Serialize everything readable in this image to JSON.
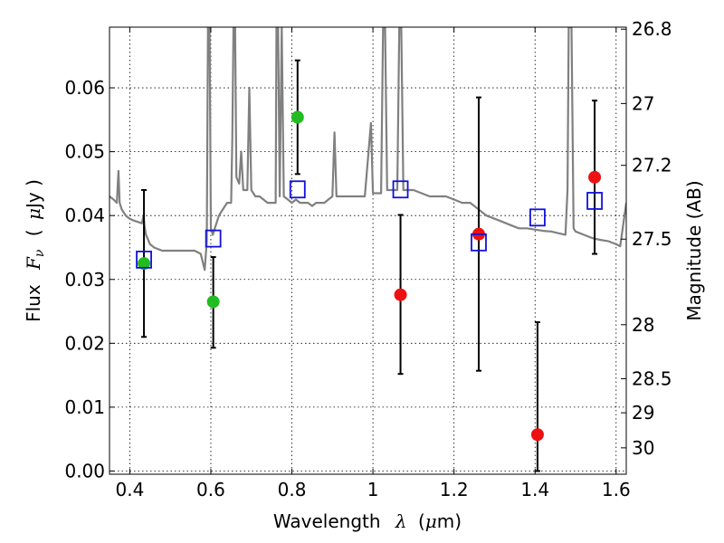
{
  "chart_data": {
    "type": "scatter",
    "title": "",
    "x_range": [
      0.35,
      1.625
    ],
    "y_range": [
      -0.0005,
      0.0695
    ],
    "grid": true,
    "x_axis": {
      "label_prefix": "Wavelength",
      "label_symbol": "λ",
      "label_open": "(",
      "label_unit_symbol": "μ",
      "label_unit_text": "m)",
      "ticks": [
        {
          "value": 0.4,
          "label": "0.4"
        },
        {
          "value": 0.6,
          "label": "0.6"
        },
        {
          "value": 0.8,
          "label": "0.8"
        },
        {
          "value": 1.0,
          "label": "1"
        },
        {
          "value": 1.2,
          "label": "1.2"
        },
        {
          "value": 1.4,
          "label": "1.4"
        },
        {
          "value": 1.6,
          "label": "1.6"
        }
      ]
    },
    "y_axis": {
      "label_prefix": "Flux",
      "label_symbol": "F",
      "label_subscript": "ν",
      "label_open": "(",
      "label_unit_symbol": "μ",
      "label_unit_text": "Jy )",
      "ticks": [
        {
          "value": 0.0,
          "label": "0.00"
        },
        {
          "value": 0.01,
          "label": "0.01"
        },
        {
          "value": 0.02,
          "label": "0.02"
        },
        {
          "value": 0.03,
          "label": "0.03"
        },
        {
          "value": 0.04,
          "label": "0.04"
        },
        {
          "value": 0.05,
          "label": "0.05"
        },
        {
          "value": 0.06,
          "label": "0.06"
        }
      ]
    },
    "right_axis": {
      "label": "Magnitude (AB)",
      "ticks": [
        {
          "value": 26.8,
          "label": "26.8"
        },
        {
          "value": 27.0,
          "label": "27"
        },
        {
          "value": 27.2,
          "label": "27.2"
        },
        {
          "value": 27.5,
          "label": "27.5"
        },
        {
          "value": 28.0,
          "label": "28"
        },
        {
          "value": 28.5,
          "label": "28.5"
        },
        {
          "value": 29.0,
          "label": "29"
        },
        {
          "value": 30.0,
          "label": "30"
        }
      ]
    },
    "series": [
      {
        "marker": "circle",
        "color": "#22bb22",
        "points": [
          {
            "x": 0.435,
            "y": 0.0325,
            "yerr_low": 0.021,
            "yerr_high": 0.044
          },
          {
            "x": 0.606,
            "y": 0.0265,
            "yerr_low": 0.0193,
            "yerr_high": 0.0335
          },
          {
            "x": 0.814,
            "y": 0.0554,
            "yerr_low": 0.0465,
            "yerr_high": 0.0643
          }
        ]
      },
      {
        "marker": "circle",
        "color": "#ee1111",
        "points": [
          {
            "x": 1.068,
            "y": 0.0276,
            "yerr_low": 0.0152,
            "yerr_high": 0.0401
          },
          {
            "x": 1.261,
            "y": 0.0371,
            "yerr_low": 0.0157,
            "yerr_high": 0.0585
          },
          {
            "x": 1.406,
            "y": 0.0057,
            "yerr_low": 0.0,
            "yerr_high": 0.0233
          },
          {
            "x": 1.547,
            "y": 0.046,
            "yerr_low": 0.034,
            "yerr_high": 0.058
          }
        ]
      },
      {
        "marker": "square",
        "color": "#1111dd",
        "points": [
          {
            "x": 0.435,
            "y": 0.0331
          },
          {
            "x": 0.606,
            "y": 0.0364
          },
          {
            "x": 0.814,
            "y": 0.0441
          },
          {
            "x": 1.068,
            "y": 0.0441
          },
          {
            "x": 1.261,
            "y": 0.0358
          },
          {
            "x": 1.406,
            "y": 0.0397
          },
          {
            "x": 1.547,
            "y": 0.0423
          }
        ]
      }
    ],
    "model_spectrum": {
      "color": "#808080",
      "points": [
        [
          0.35,
          0.043
        ],
        [
          0.36,
          0.0425
        ],
        [
          0.368,
          0.042
        ],
        [
          0.372,
          0.047
        ],
        [
          0.375,
          0.042
        ],
        [
          0.38,
          0.041
        ],
        [
          0.39,
          0.04
        ],
        [
          0.4,
          0.0395
        ],
        [
          0.41,
          0.0392
        ],
        [
          0.42,
          0.039
        ],
        [
          0.43,
          0.0388
        ],
        [
          0.434,
          0.04
        ],
        [
          0.436,
          0.0385
        ],
        [
          0.44,
          0.037
        ],
        [
          0.45,
          0.0355
        ],
        [
          0.46,
          0.035
        ],
        [
          0.48,
          0.0345
        ],
        [
          0.5,
          0.0345
        ],
        [
          0.52,
          0.0345
        ],
        [
          0.54,
          0.0345
        ],
        [
          0.56,
          0.0345
        ],
        [
          0.575,
          0.034
        ],
        [
          0.585,
          0.0315
        ],
        [
          0.59,
          0.036
        ],
        [
          0.593,
          0.0695
        ],
        [
          0.597,
          0.0695
        ],
        [
          0.6,
          0.038
        ],
        [
          0.605,
          0.037
        ],
        [
          0.61,
          0.038
        ],
        [
          0.62,
          0.04
        ],
        [
          0.63,
          0.041
        ],
        [
          0.64,
          0.042
        ],
        [
          0.65,
          0.042
        ],
        [
          0.653,
          0.052
        ],
        [
          0.656,
          0.0695
        ],
        [
          0.66,
          0.0695
        ],
        [
          0.663,
          0.046
        ],
        [
          0.67,
          0.045
        ],
        [
          0.675,
          0.05
        ],
        [
          0.68,
          0.044
        ],
        [
          0.69,
          0.044
        ],
        [
          0.695,
          0.06
        ],
        [
          0.7,
          0.044
        ],
        [
          0.71,
          0.043
        ],
        [
          0.72,
          0.043
        ],
        [
          0.73,
          0.0425
        ],
        [
          0.74,
          0.042
        ],
        [
          0.75,
          0.042
        ],
        [
          0.76,
          0.042
        ],
        [
          0.762,
          0.0695
        ],
        [
          0.766,
          0.0695
        ],
        [
          0.77,
          0.043
        ],
        [
          0.775,
          0.0695
        ],
        [
          0.78,
          0.043
        ],
        [
          0.79,
          0.0425
        ],
        [
          0.8,
          0.042
        ],
        [
          0.81,
          0.0425
        ],
        [
          0.82,
          0.042
        ],
        [
          0.83,
          0.042
        ],
        [
          0.84,
          0.042
        ],
        [
          0.85,
          0.0415
        ],
        [
          0.86,
          0.042
        ],
        [
          0.87,
          0.042
        ],
        [
          0.88,
          0.042
        ],
        [
          0.89,
          0.0425
        ],
        [
          0.9,
          0.043
        ],
        [
          0.905,
          0.053
        ],
        [
          0.91,
          0.043
        ],
        [
          0.92,
          0.043
        ],
        [
          0.93,
          0.043
        ],
        [
          0.94,
          0.043
        ],
        [
          0.95,
          0.043
        ],
        [
          0.96,
          0.043
        ],
        [
          0.97,
          0.043
        ],
        [
          0.98,
          0.043
        ],
        [
          0.995,
          0.0545
        ],
        [
          1.0,
          0.0435
        ],
        [
          1.01,
          0.0435
        ],
        [
          1.02,
          0.0435
        ],
        [
          1.025,
          0.0695
        ],
        [
          1.03,
          0.0695
        ],
        [
          1.035,
          0.044
        ],
        [
          1.05,
          0.044
        ],
        [
          1.06,
          0.044
        ],
        [
          1.065,
          0.0695
        ],
        [
          1.07,
          0.0695
        ],
        [
          1.075,
          0.044
        ],
        [
          1.08,
          0.044
        ],
        [
          1.1,
          0.044
        ],
        [
          1.12,
          0.0435
        ],
        [
          1.14,
          0.043
        ],
        [
          1.16,
          0.043
        ],
        [
          1.18,
          0.043
        ],
        [
          1.2,
          0.0425
        ],
        [
          1.22,
          0.042
        ],
        [
          1.24,
          0.042
        ],
        [
          1.26,
          0.041
        ],
        [
          1.28,
          0.04
        ],
        [
          1.3,
          0.0395
        ],
        [
          1.32,
          0.039
        ],
        [
          1.34,
          0.0385
        ],
        [
          1.36,
          0.038
        ],
        [
          1.38,
          0.038
        ],
        [
          1.4,
          0.0378
        ],
        [
          1.42,
          0.0376
        ],
        [
          1.44,
          0.0375
        ],
        [
          1.46,
          0.0372
        ],
        [
          1.475,
          0.037
        ],
        [
          1.48,
          0.044
        ],
        [
          1.483,
          0.0695
        ],
        [
          1.49,
          0.0695
        ],
        [
          1.495,
          0.038
        ],
        [
          1.5,
          0.0375
        ],
        [
          1.52,
          0.037
        ],
        [
          1.54,
          0.0365
        ],
        [
          1.56,
          0.0362
        ],
        [
          1.58,
          0.036
        ],
        [
          1.6,
          0.0355
        ],
        [
          1.61,
          0.0352
        ],
        [
          1.625,
          0.042
        ]
      ]
    }
  }
}
